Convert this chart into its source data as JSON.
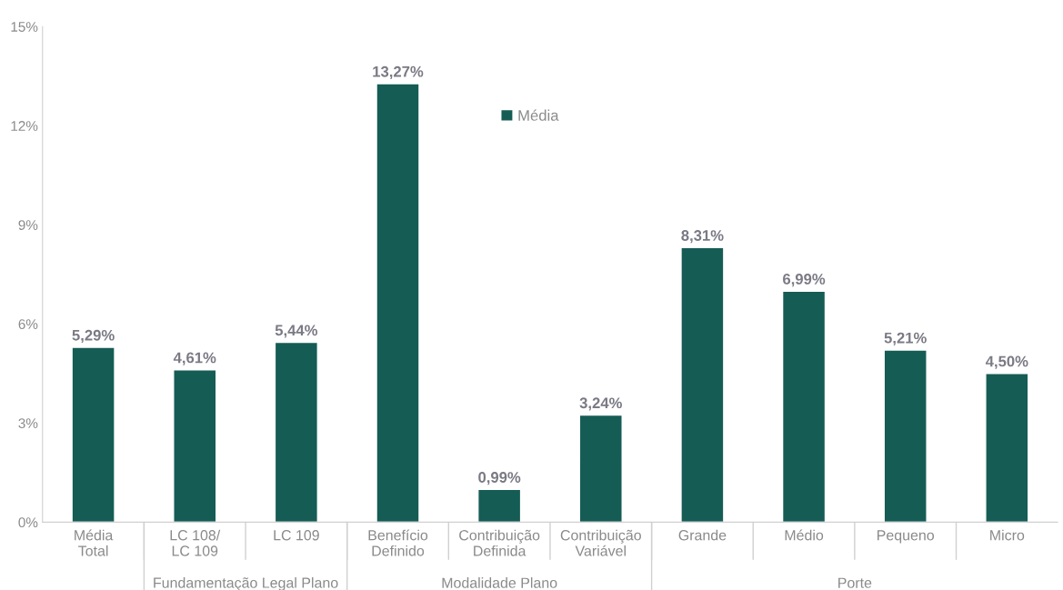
{
  "chart_data": {
    "type": "bar",
    "categories": [
      "Média\nTotal",
      "LC 108/\nLC 109",
      "LC 109",
      "Benefício\nDefinido",
      "Contribuição\nDefinida",
      "Contribuição\nVariável",
      "Grande",
      "Médio",
      "Pequeno",
      "Micro"
    ],
    "series": [
      {
        "name": "Média",
        "color": "#155c55",
        "values": [
          5.29,
          4.61,
          5.44,
          13.27,
          0.99,
          3.24,
          8.31,
          6.99,
          5.21,
          4.5
        ],
        "value_labels": [
          "5,29%",
          "4,61%",
          "5,44%",
          "13,27%",
          "0,99%",
          "3,24%",
          "8,31%",
          "6,99%",
          "5,21%",
          "4,50%"
        ]
      }
    ],
    "ylim": [
      0,
      15
    ],
    "yticks": [
      {
        "value": 0,
        "label": "0%"
      },
      {
        "value": 3,
        "label": "3%"
      },
      {
        "value": 6,
        "label": "6%"
      },
      {
        "value": 9,
        "label": "9%"
      },
      {
        "value": 12,
        "label": "12%"
      },
      {
        "value": 15,
        "label": "15%"
      }
    ],
    "annotations": [
      "Fundamentação Legal Plano",
      "Modalidade Plano",
      "Porte"
    ],
    "grid": false,
    "legend": "top"
  }
}
